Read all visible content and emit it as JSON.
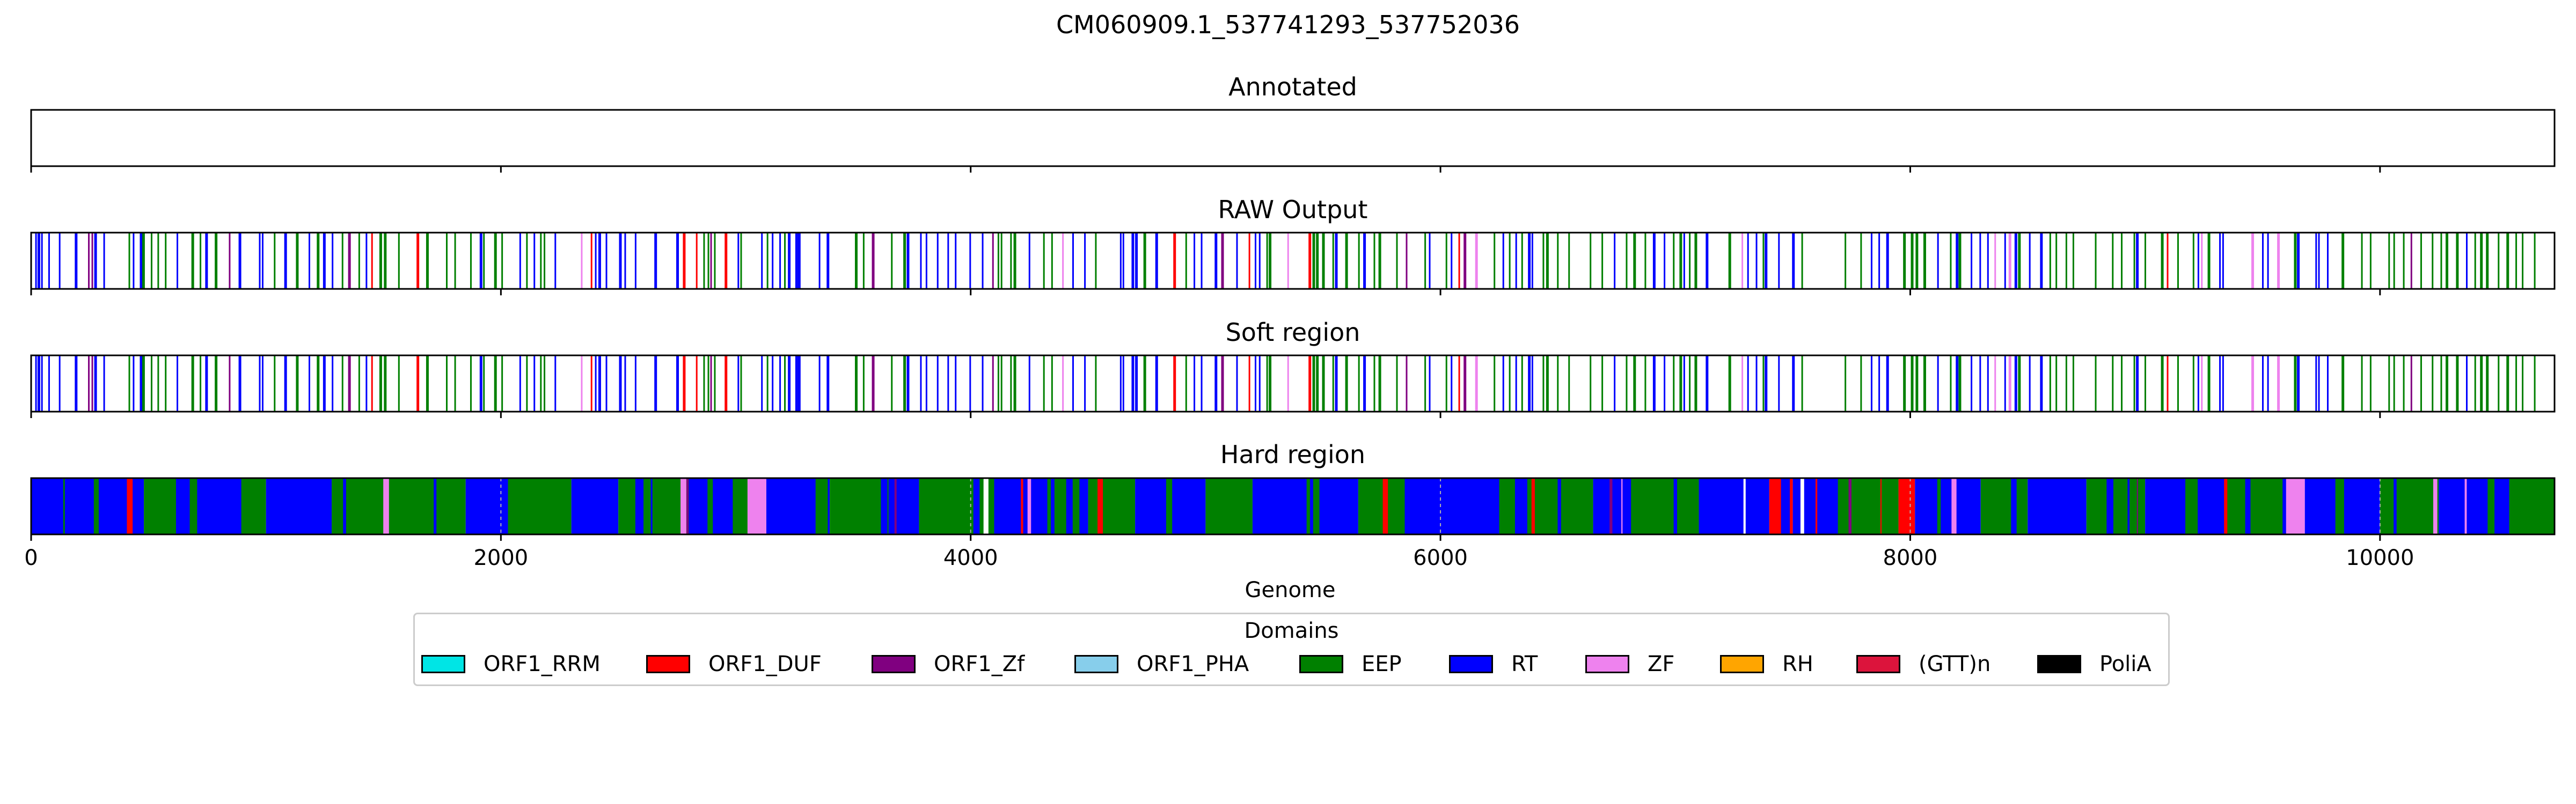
{
  "figure": {
    "title": "CM060909.1_537741293_537752036"
  },
  "colors": {
    "ORF1_RRM": "#00e5e5",
    "ORF1_DUF": "#ff0000",
    "ORF1_Zf": "#800080",
    "ORF1_PHA": "#87ceeb",
    "EEP": "#008000",
    "RT": "#0000ff",
    "ZF": "#ee82ee",
    "RH": "#ffa500",
    "(GTT)n": "#dc143c",
    "PoliA": "#000000"
  },
  "chart_data": {
    "type": "track",
    "xlabel": "Genome",
    "xlim": [
      0,
      10743
    ],
    "xticks": [
      0,
      2000,
      4000,
      6000,
      8000,
      10000
    ],
    "xtick_labels": [
      "0",
      "2000",
      "4000",
      "6000",
      "8000",
      "10000"
    ],
    "panels": [
      {
        "title": "Annotated",
        "mode": "empty",
        "segments": []
      },
      {
        "title": "RAW Output",
        "mode": "lines",
        "seed": 7,
        "pattern": [
          [
            "RT",
            0,
            380
          ],
          [
            "EEP",
            380,
            820
          ],
          [
            "RT",
            820,
            1380
          ],
          [
            "EEP",
            1380,
            2250
          ],
          [
            "RT",
            2250,
            2700
          ],
          [
            "EEP",
            2700,
            3100
          ],
          [
            "RT",
            3100,
            3400
          ],
          [
            "EEP",
            3400,
            3700
          ],
          [
            "RT",
            3700,
            4100
          ],
          [
            "EEP",
            4100,
            4600
          ],
          [
            "RT",
            4600,
            5300
          ],
          [
            "EEP",
            5300,
            5900
          ],
          [
            "RT",
            5900,
            6400
          ],
          [
            "EEP",
            6400,
            6900
          ],
          [
            "RT",
            6900,
            7700
          ],
          [
            "EEP",
            7700,
            8100
          ],
          [
            "RT",
            8100,
            8600
          ],
          [
            "EEP",
            8600,
            9300
          ],
          [
            "RT",
            9300,
            9800
          ],
          [
            "EEP",
            9800,
            10743
          ]
        ]
      },
      {
        "title": "Soft region",
        "mode": "lines",
        "seed": 7,
        "pattern": [
          [
            "RT",
            0,
            380
          ],
          [
            "EEP",
            380,
            820
          ],
          [
            "RT",
            820,
            1380
          ],
          [
            "EEP",
            1380,
            2250
          ],
          [
            "RT",
            2250,
            2700
          ],
          [
            "EEP",
            2700,
            3100
          ],
          [
            "RT",
            3100,
            3400
          ],
          [
            "EEP",
            3400,
            3700
          ],
          [
            "RT",
            3700,
            4100
          ],
          [
            "EEP",
            4100,
            4600
          ],
          [
            "RT",
            4600,
            5300
          ],
          [
            "EEP",
            5300,
            5900
          ],
          [
            "RT",
            5900,
            6400
          ],
          [
            "EEP",
            6400,
            6900
          ],
          [
            "RT",
            6900,
            7700
          ],
          [
            "EEP",
            7700,
            8100
          ],
          [
            "RT",
            8100,
            8600
          ],
          [
            "EEP",
            8600,
            9300
          ],
          [
            "RT",
            9300,
            9800
          ],
          [
            "EEP",
            9800,
            10743
          ]
        ]
      },
      {
        "title": "Hard region",
        "mode": "filled",
        "seed": 13,
        "segments": [
          [
            "RT",
            0,
            480
          ],
          [
            "EEP",
            480,
            640
          ],
          [
            "RT",
            640,
            900
          ],
          [
            "EEP",
            900,
            1000
          ],
          [
            "RT",
            1000,
            1280
          ],
          [
            "EEP",
            1280,
            1850
          ],
          [
            "RT",
            1850,
            2030
          ],
          [
            "EEP",
            2030,
            2300
          ],
          [
            "RT",
            2300,
            2500
          ],
          [
            "EEP",
            2500,
            2800
          ],
          [
            "RT",
            2800,
            3000
          ],
          [
            "EEP",
            3000,
            3050
          ],
          [
            "ZF",
            3050,
            3130
          ],
          [
            "RT",
            3130,
            3400
          ],
          [
            "EEP",
            3400,
            3650
          ],
          [
            "RT",
            3650,
            3780
          ],
          [
            "EEP",
            3780,
            4100
          ],
          [
            "RT",
            4100,
            4500
          ],
          [
            "EEP",
            4500,
            4700
          ],
          [
            "RT",
            4700,
            5000
          ],
          [
            "EEP",
            5000,
            5200
          ],
          [
            "RT",
            5200,
            5650
          ],
          [
            "EEP",
            5650,
            5850
          ],
          [
            "RT",
            5850,
            6250
          ],
          [
            "EEP",
            6250,
            6650
          ],
          [
            "RT",
            6650,
            6850
          ],
          [
            "EEP",
            6850,
            7100
          ],
          [
            "RT",
            7100,
            7400
          ],
          [
            "ORF1_DUF",
            7400,
            7500
          ],
          [
            "RT",
            7500,
            7700
          ],
          [
            "EEP",
            7700,
            7950
          ],
          [
            "ORF1_DUF",
            7950,
            8020
          ],
          [
            "RT",
            8020,
            8300
          ],
          [
            "EEP",
            8300,
            8500
          ],
          [
            "RT",
            8500,
            8750
          ],
          [
            "EEP",
            8750,
            9000
          ],
          [
            "RT",
            9000,
            9350
          ],
          [
            "EEP",
            9350,
            9600
          ],
          [
            "ZF",
            9600,
            9680
          ],
          [
            "RT",
            9680,
            10000
          ],
          [
            "EEP",
            10000,
            10250
          ],
          [
            "RT",
            10250,
            10550
          ],
          [
            "EEP",
            10550,
            10743
          ]
        ]
      }
    ],
    "legend": {
      "title": "Domains",
      "entries": [
        "ORF1_RRM",
        "ORF1_DUF",
        "ORF1_Zf",
        "ORF1_PHA",
        "EEP",
        "RT",
        "ZF",
        "RH",
        "(GTT)n",
        "PoliA"
      ],
      "position": "bottom-center"
    }
  }
}
